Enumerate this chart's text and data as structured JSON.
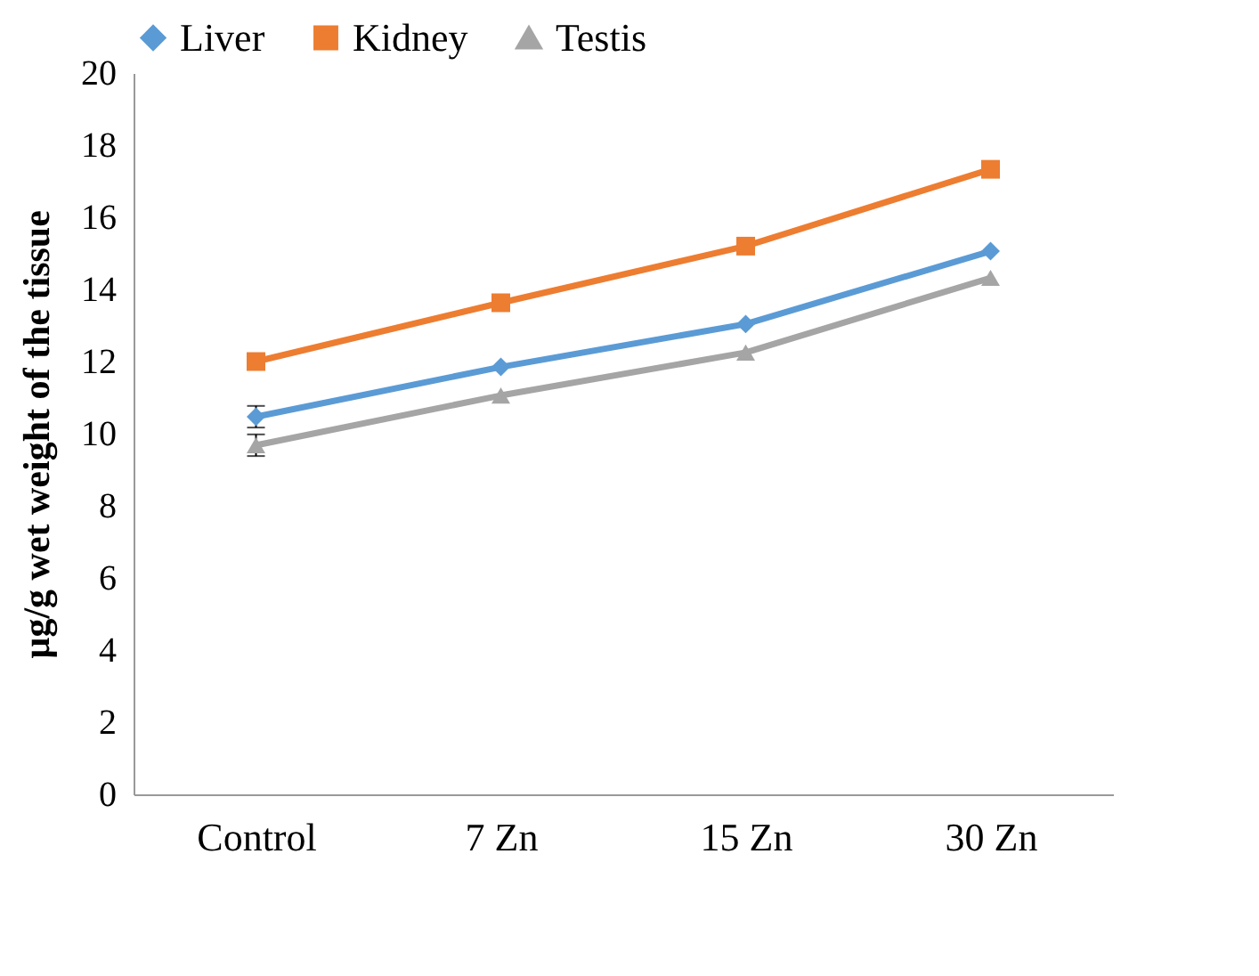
{
  "chart_data": {
    "type": "line",
    "ylabel": "µg/g wet weight of the tissue",
    "categories": [
      "Control",
      "7 Zn",
      "15 Zn",
      "30 Zn"
    ],
    "series": [
      {
        "name": "Liver",
        "color": "#5b9bd5",
        "marker": "diamond",
        "values": [
          10.47,
          11.85,
          13.04,
          15.06
        ],
        "errors": [
          0.3,
          null,
          null,
          null
        ]
      },
      {
        "name": "Kidney",
        "color": "#ed7d31",
        "marker": "square",
        "values": [
          12.0,
          13.63,
          15.2,
          17.33
        ]
      },
      {
        "name": "Testis",
        "color": "#a5a5a5",
        "marker": "triangle",
        "values": [
          9.68,
          11.06,
          12.25,
          14.32
        ],
        "errors": [
          0.3,
          null,
          null,
          null
        ]
      }
    ],
    "ylim": [
      0,
      20
    ],
    "yticks": [
      0,
      2,
      4,
      6,
      8,
      10,
      12,
      14,
      16,
      18,
      20
    ],
    "grid": false,
    "legend": "top",
    "line_style": "solid"
  }
}
